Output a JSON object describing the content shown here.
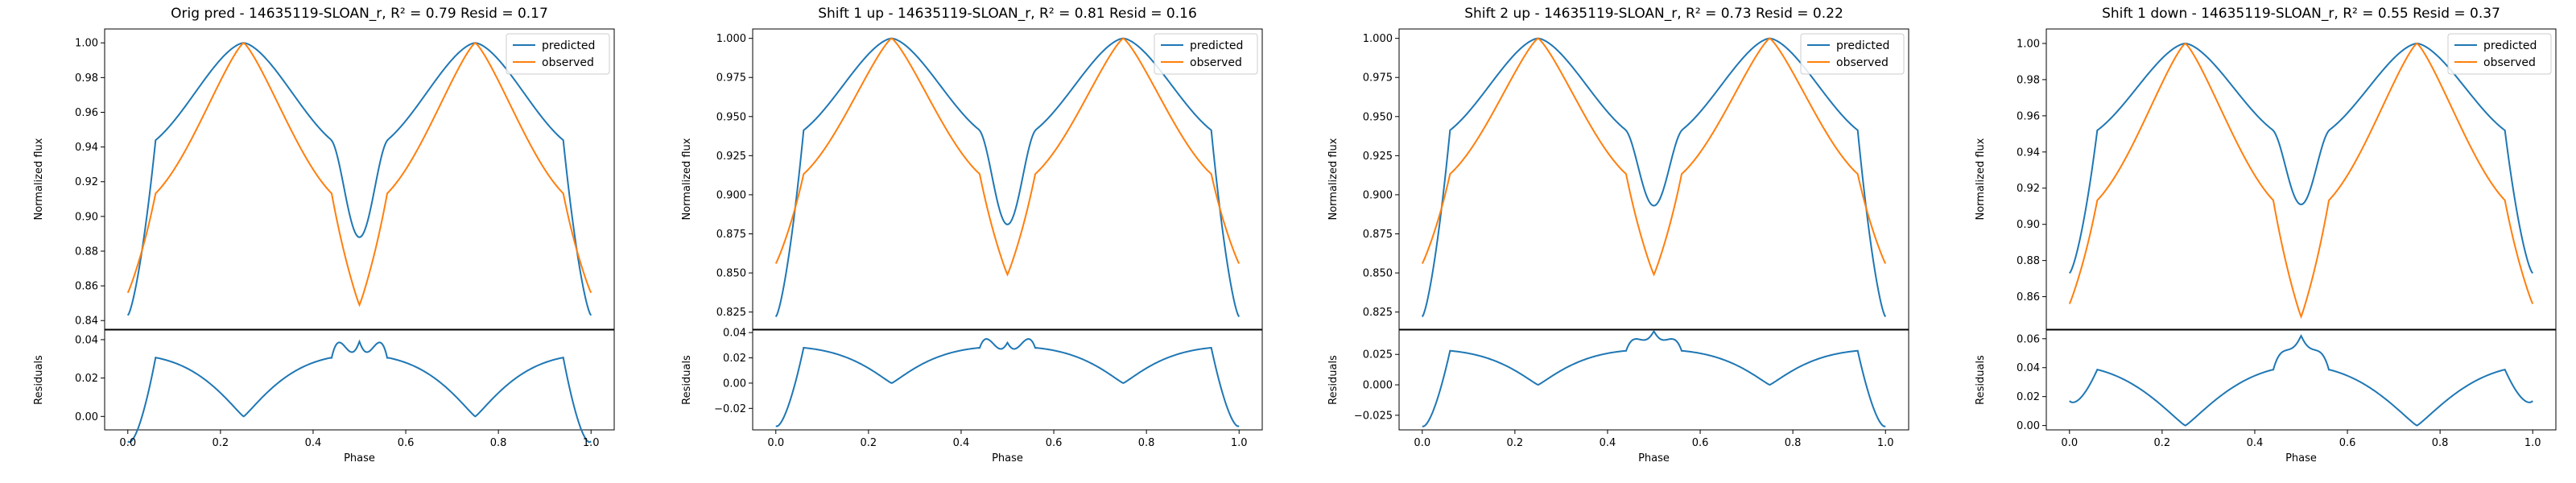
{
  "colors": {
    "predicted": "#1f77b4",
    "observed": "#ff7f0e"
  },
  "chart_data": [
    {
      "type": "line",
      "title": "Orig pred - 14635119-SLOAN_r, R² = 0.79 Resid = 0.17",
      "ylabel": "Normalized flux",
      "resid_ylabel": "Residuals",
      "xlabel": "Phase",
      "legend_position": "top-right",
      "series": [
        {
          "name": "predicted"
        },
        {
          "name": "observed"
        }
      ],
      "pred_params": {
        "base": 0.843,
        "peak": 1.0,
        "dip": 0.888,
        "shoulder": 0.937,
        "dip_width": 0.062
      },
      "obs_params": {
        "base": 0.856,
        "dip": 0.849
      },
      "xlim": [
        -0.05,
        1.05
      ],
      "ylim": [
        0.835,
        1.008
      ],
      "yticks": [
        0.84,
        0.86,
        0.88,
        0.9,
        0.92,
        0.94,
        0.96,
        0.98,
        1.0
      ],
      "resid_ylim": [
        -0.007,
        0.045
      ],
      "resid_yticks": [
        0.0,
        0.02,
        0.04
      ],
      "xticks": [
        0.0,
        0.2,
        0.4,
        0.6,
        0.8,
        1.0
      ]
    },
    {
      "type": "line",
      "title": "Shift 1 up - 14635119-SLOAN_r, R² = 0.81 Resid = 0.16",
      "ylabel": "Normalized flux",
      "resid_ylabel": "Residuals",
      "xlabel": "Phase",
      "legend_position": "top-right",
      "series": [
        {
          "name": "predicted"
        },
        {
          "name": "observed"
        }
      ],
      "pred_params": {
        "base": 0.822,
        "peak": 1.0,
        "dip": 0.881,
        "shoulder": 0.934,
        "dip_width": 0.062
      },
      "obs_params": {
        "base": 0.856,
        "dip": 0.849
      },
      "xlim": [
        -0.05,
        1.05
      ],
      "ylim": [
        0.814,
        1.006
      ],
      "yticks": [
        0.825,
        0.85,
        0.875,
        0.9,
        0.925,
        0.95,
        0.975,
        1.0
      ],
      "resid_ylim": [
        -0.037,
        0.042
      ],
      "resid_yticks": [
        -0.02,
        0.0,
        0.02,
        0.04
      ],
      "xticks": [
        0.0,
        0.2,
        0.4,
        0.6,
        0.8,
        1.0
      ]
    },
    {
      "type": "line",
      "title": "Shift 2 up - 14635119-SLOAN_r, R² = 0.73 Resid = 0.22",
      "ylabel": "Normalized flux",
      "resid_ylabel": "Residuals",
      "xlabel": "Phase",
      "legend_position": "top-right",
      "series": [
        {
          "name": "predicted"
        },
        {
          "name": "observed"
        }
      ],
      "pred_params": {
        "base": 0.822,
        "peak": 1.0,
        "dip": 0.893,
        "shoulder": 0.934,
        "dip_width": 0.062
      },
      "obs_params": {
        "base": 0.856,
        "dip": 0.849
      },
      "xlim": [
        -0.05,
        1.05
      ],
      "ylim": [
        0.814,
        1.006
      ],
      "yticks": [
        0.825,
        0.85,
        0.875,
        0.9,
        0.925,
        0.95,
        0.975,
        1.0
      ],
      "resid_ylim": [
        -0.037,
        0.045
      ],
      "resid_yticks": [
        -0.025,
        0.0,
        0.025
      ],
      "xticks": [
        0.0,
        0.2,
        0.4,
        0.6,
        0.8,
        1.0
      ]
    },
    {
      "type": "line",
      "title": "Shift 1 down - 14635119-SLOAN_r, R² = 0.55 Resid = 0.37",
      "ylabel": "Normalized flux",
      "resid_ylabel": "Residuals",
      "xlabel": "Phase",
      "legend_position": "top-right",
      "series": [
        {
          "name": "predicted"
        },
        {
          "name": "observed"
        }
      ],
      "pred_params": {
        "base": 0.873,
        "peak": 1.0,
        "dip": 0.911,
        "shoulder": 0.946,
        "dip_width": 0.062
      },
      "obs_params": {
        "base": 0.856,
        "dip": 0.849
      },
      "xlim": [
        -0.05,
        1.05
      ],
      "ylim": [
        0.842,
        1.008
      ],
      "yticks": [
        0.86,
        0.88,
        0.9,
        0.92,
        0.94,
        0.96,
        0.98,
        1.0
      ],
      "resid_ylim": [
        -0.003,
        0.066
      ],
      "resid_yticks": [
        0.0,
        0.02,
        0.04,
        0.06
      ],
      "xticks": [
        0.0,
        0.2,
        0.4,
        0.6,
        0.8,
        1.0
      ]
    }
  ]
}
